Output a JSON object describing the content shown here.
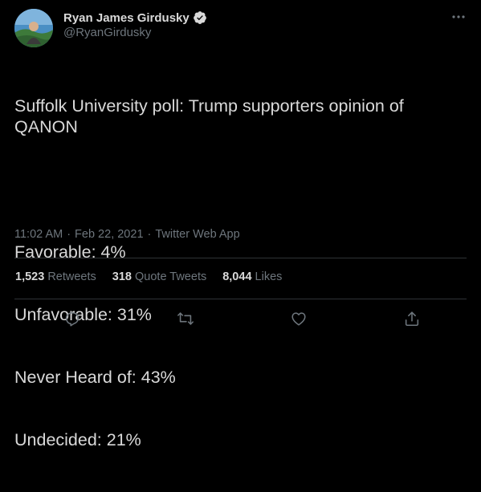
{
  "author": {
    "display_name": "Ryan James Girdusky",
    "handle": "@RyanGirdusky",
    "verified_icon": "verified-badge-icon",
    "avatar_icon": "avatar-photo"
  },
  "tweet": {
    "lines": [
      "Suffolk University poll: Trump supporters opinion of QANON",
      "",
      "Favorable: 4%",
      "Unfavorable: 31%",
      "Never Heard of: 43%",
      "Undecided: 21%"
    ],
    "time": "11:02 AM",
    "date": "Feb 22, 2021",
    "source": "Twitter Web App",
    "separator": "·"
  },
  "stats": {
    "retweets": {
      "count": "1,523",
      "label": "Retweets"
    },
    "quote_tweets": {
      "count": "318",
      "label": "Quote Tweets"
    },
    "likes": {
      "count": "8,044",
      "label": "Likes"
    }
  },
  "actions": {
    "icons": [
      "reply-icon",
      "retweet-icon",
      "like-icon",
      "share-icon"
    ]
  },
  "colors": {
    "background": "#000000",
    "text": "#d9d9d9",
    "secondary": "#6e767d",
    "divider": "#2f3336",
    "verified": "#d9d9d9"
  }
}
